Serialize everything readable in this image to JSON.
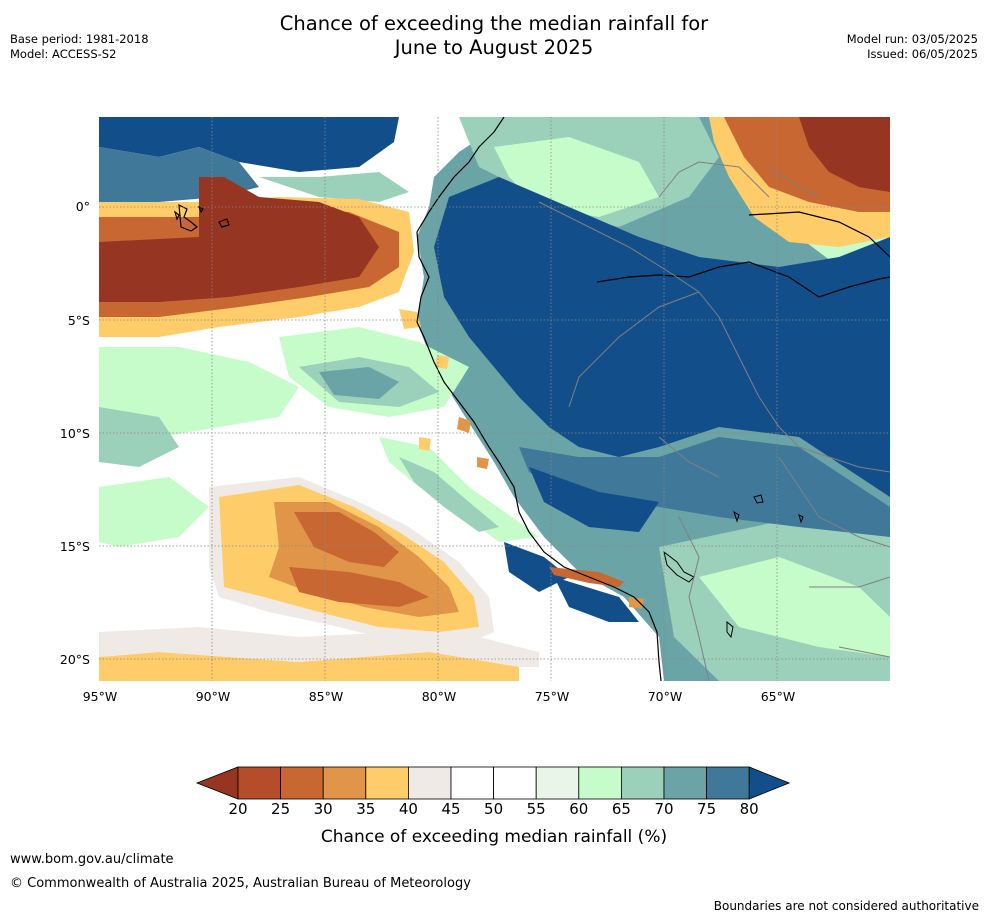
{
  "header": {
    "title_line1": "Chance of exceeding the median rainfall for",
    "title_line2": "June to August 2025",
    "base_period": "Base period: 1981-2018",
    "model": "Model: ACCESS-S2",
    "model_run": "Model run: 03/05/2025",
    "issued": "Issued: 06/05/2025"
  },
  "map": {
    "lat_labels": [
      "0°",
      "5°S",
      "10°S",
      "15°S",
      "20°S"
    ],
    "lon_labels": [
      "95°W",
      "90°W",
      "85°W",
      "80°W",
      "75°W",
      "70°W",
      "65°W"
    ]
  },
  "colorbar": {
    "ticks": [
      "20",
      "25",
      "30",
      "35",
      "40",
      "45",
      "50",
      "55",
      "60",
      "65",
      "70",
      "75",
      "80"
    ],
    "colors": [
      "#953522",
      "#b54d2a",
      "#c96733",
      "#e09548",
      "#ffcc6a",
      "#efeae6",
      "#ffffff",
      "#ffffff",
      "#e9f5e8",
      "#c6fcca",
      "#9bd0ba",
      "#6aa4a6",
      "#3f7899",
      "#124e89"
    ],
    "title": "Chance of exceeding median rainfall (%)"
  },
  "footer": {
    "website": "www.bom.gov.au/climate",
    "copyright": "© Commonwealth of Australia 2025, Australian Bureau of Meteorology",
    "disclaimer": "Boundaries are not considered authoritative"
  }
}
